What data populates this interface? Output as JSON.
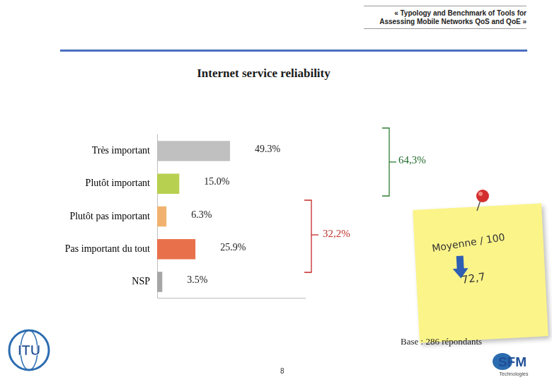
{
  "header": "« Typology and Benchmark of Tools for Assessing Mobile Networks QoS and QoE »",
  "chart_data": {
    "type": "bar",
    "title": "Internet service reliability",
    "orientation": "horizontal",
    "categories": [
      "Très important",
      "Plutôt important",
      "Plutôt pas important",
      "Pas important du tout",
      "NSP"
    ],
    "values": [
      49.3,
      15.0,
      6.3,
      25.9,
      3.5
    ],
    "value_labels": [
      "49.3%",
      "15.0%",
      "6.3%",
      "25.9%",
      "3.5%"
    ],
    "colors": [
      "#c0c0c0",
      "#b7d050",
      "#f0b26e",
      "#e8714b",
      "#a6a6a6"
    ],
    "xlim": [
      0,
      100
    ],
    "grid": false,
    "data_labels": true,
    "tick_labels": "y"
  },
  "annotations": [
    {
      "text": "64,3%",
      "color": "#1f6b2a"
    },
    {
      "text": "32,2%",
      "color": "#c0312b"
    }
  ],
  "note": {
    "title": "Moyenne / 100",
    "value": "72,7"
  },
  "base": "Base : 286 répondants",
  "page": "8",
  "logos": {
    "left": "ITU",
    "right": "SFM",
    "right_sub": "Technologies"
  }
}
